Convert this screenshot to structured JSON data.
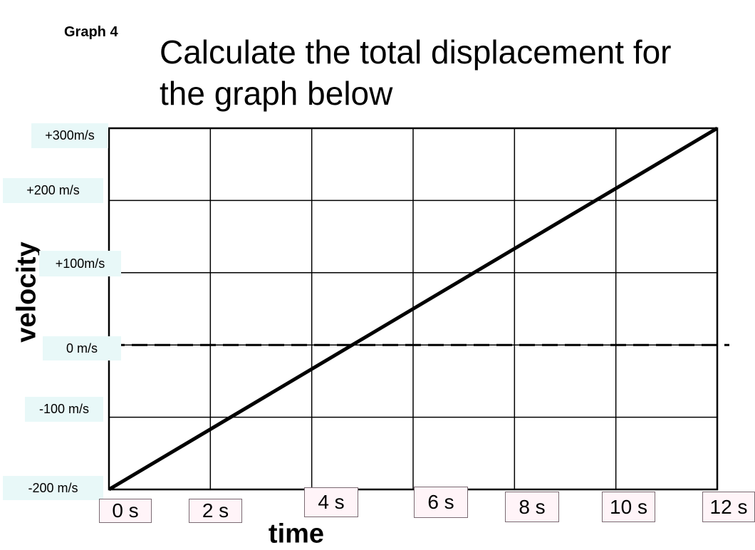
{
  "chart_data": {
    "type": "line",
    "title": "Calculate the total displacement for the graph below",
    "annotation": "Graph 4",
    "x_label": "time",
    "y_label": "velocity",
    "x": [
      0,
      12
    ],
    "values": [
      -200,
      300
    ],
    "color": "#000000",
    "xlim": [
      0,
      12
    ],
    "ylim": [
      -200,
      300
    ],
    "xticks": [
      {
        "value": 0,
        "label": "0 s"
      },
      {
        "value": 2,
        "label": "2 s"
      },
      {
        "value": 4,
        "label": "4 s"
      },
      {
        "value": 6,
        "label": "6 s"
      },
      {
        "value": 8,
        "label": "8 s"
      },
      {
        "value": 10,
        "label": "10 s"
      },
      {
        "value": 12,
        "label": "12 s"
      }
    ],
    "yticks": [
      {
        "value": 300,
        "label": "+300m/s"
      },
      {
        "value": 200,
        "label": "+200 m/s"
      },
      {
        "value": 100,
        "label": "+100m/s"
      },
      {
        "value": 0,
        "label": "0 m/s"
      },
      {
        "value": -100,
        "label": "-100 m/s"
      },
      {
        "value": -200,
        "label": "-200 m/s"
      }
    ],
    "grid": true
  }
}
